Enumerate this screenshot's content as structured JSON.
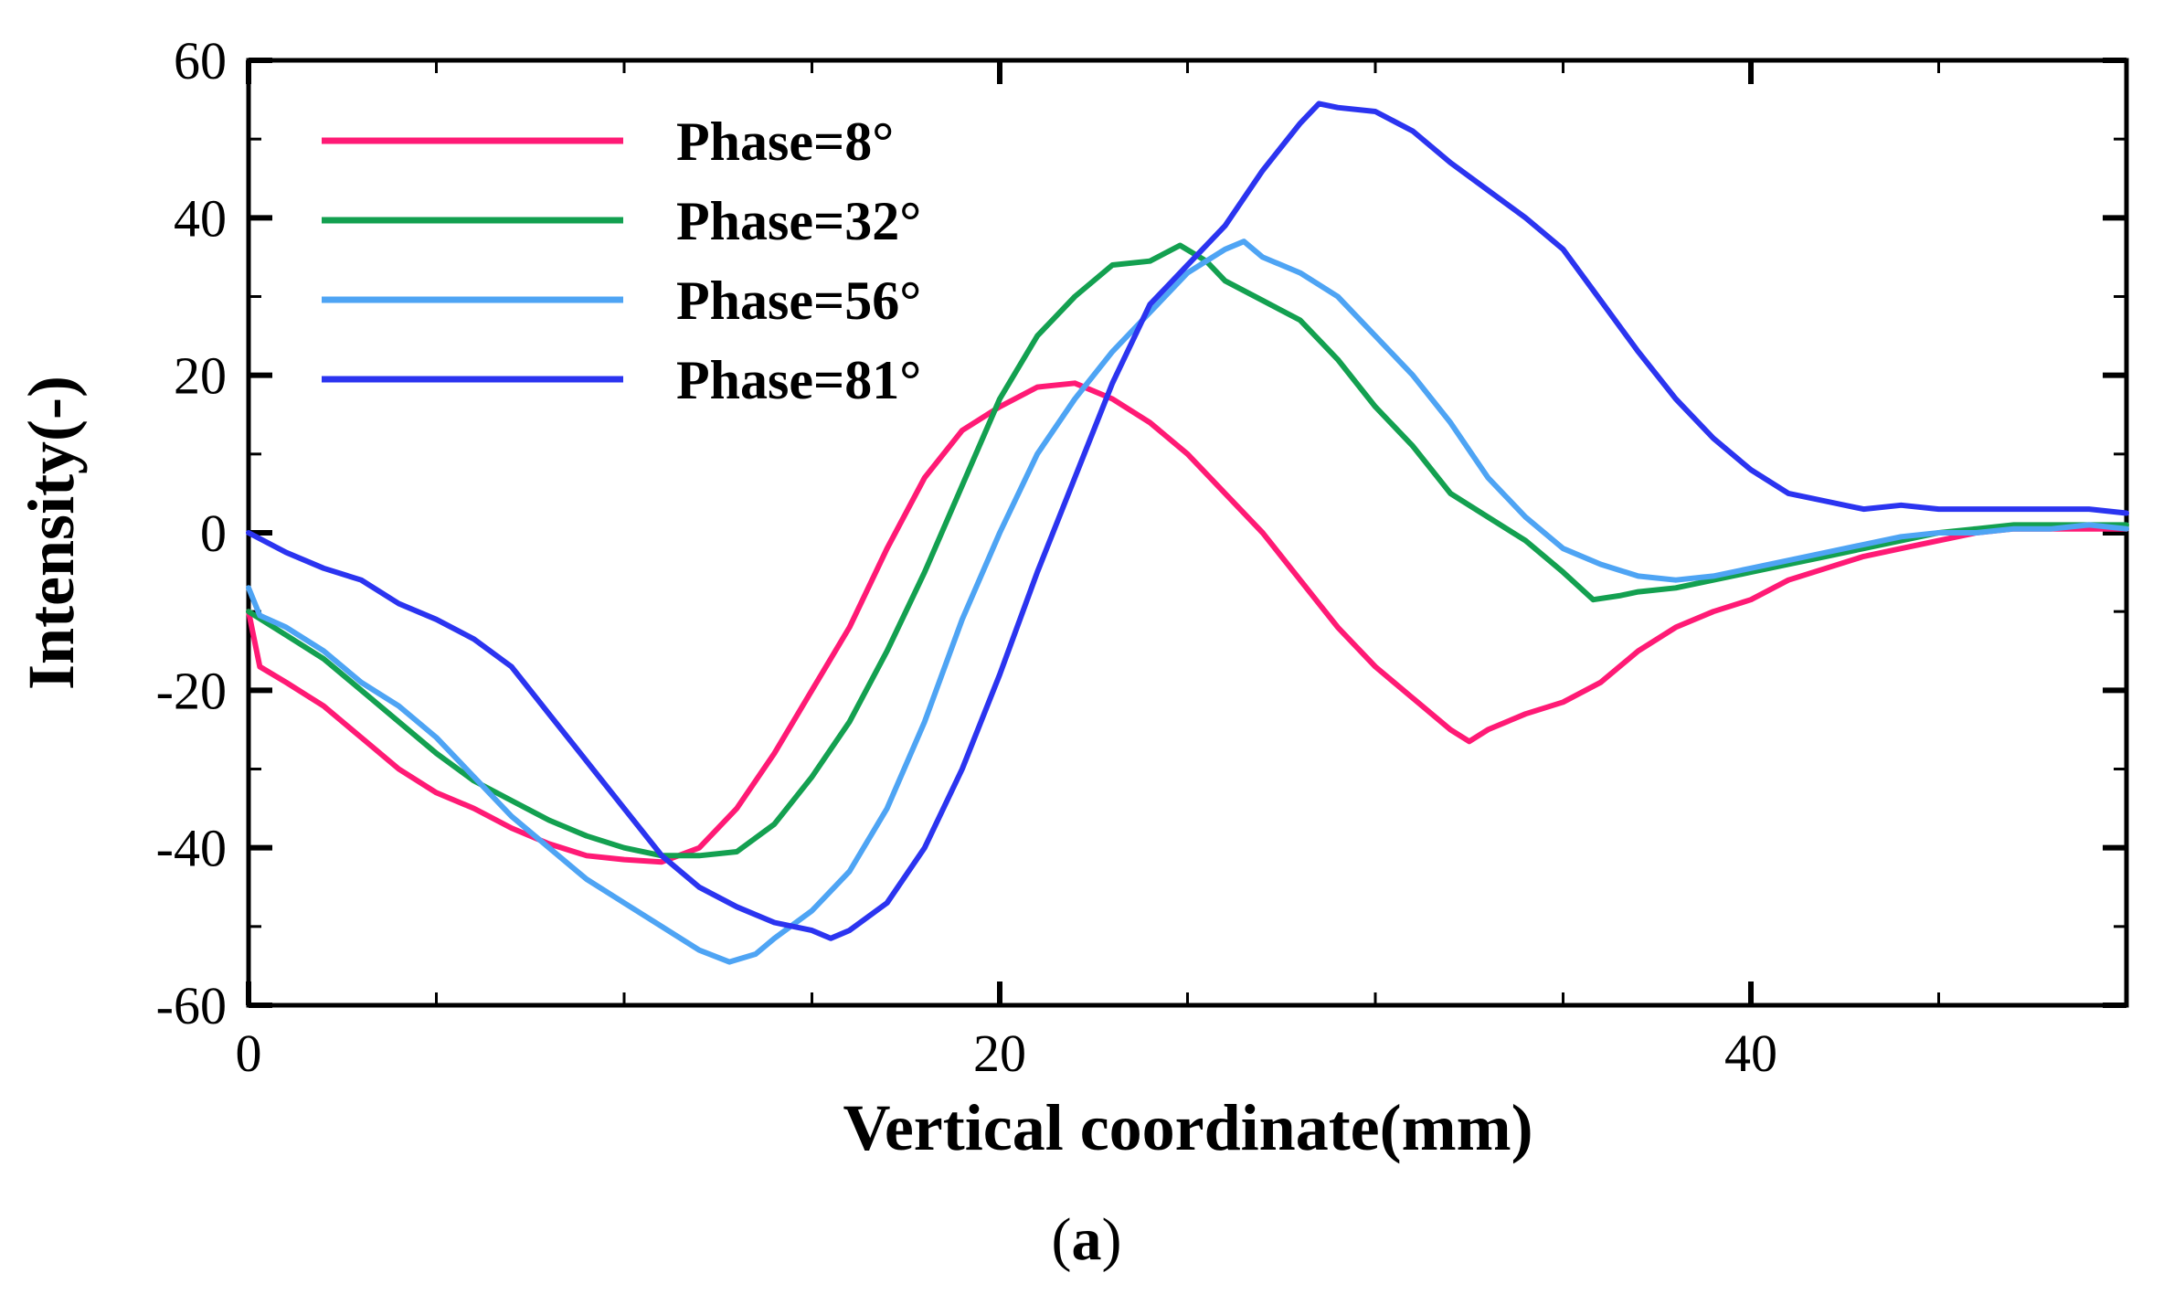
{
  "chart_data": {
    "type": "line",
    "title": "",
    "xlabel": "Vertical coordinate(mm)",
    "ylabel": "Intensity(-)",
    "xlim": [
      0,
      50
    ],
    "ylim": [
      -60,
      60
    ],
    "x_ticks": [
      0,
      20,
      40
    ],
    "x_tick_labels": [
      "0",
      "20",
      "40"
    ],
    "x_minor_step": 5,
    "y_ticks": [
      -60,
      -40,
      -20,
      0,
      20,
      40,
      60
    ],
    "y_tick_labels": [
      "-60",
      "-40",
      "-20",
      "0",
      "20",
      "40",
      "60"
    ],
    "y_minor_step": 10,
    "grid": false,
    "legend_position": "top-left",
    "series": [
      {
        "name": "Phase=8°",
        "color": "#ff1a75",
        "points": [
          [
            0,
            -10
          ],
          [
            0.3,
            -17
          ],
          [
            1,
            -19
          ],
          [
            2,
            -22
          ],
          [
            3,
            -26
          ],
          [
            4,
            -30
          ],
          [
            5,
            -33
          ],
          [
            6,
            -35
          ],
          [
            7,
            -37.5
          ],
          [
            8,
            -39.5
          ],
          [
            9,
            -41
          ],
          [
            10,
            -41.5
          ],
          [
            11,
            -41.8
          ],
          [
            12,
            -40
          ],
          [
            13,
            -35
          ],
          [
            14,
            -28
          ],
          [
            15,
            -20
          ],
          [
            16,
            -12
          ],
          [
            17,
            -2
          ],
          [
            18,
            7
          ],
          [
            19,
            13
          ],
          [
            20,
            16
          ],
          [
            21,
            18.5
          ],
          [
            22,
            19
          ],
          [
            23,
            17
          ],
          [
            24,
            14
          ],
          [
            25,
            10
          ],
          [
            26,
            5
          ],
          [
            27,
            0
          ],
          [
            28,
            -6
          ],
          [
            29,
            -12
          ],
          [
            30,
            -17
          ],
          [
            31,
            -21
          ],
          [
            32,
            -25
          ],
          [
            32.5,
            -26.5
          ],
          [
            33,
            -25
          ],
          [
            34,
            -23
          ],
          [
            35,
            -21.5
          ],
          [
            36,
            -19
          ],
          [
            37,
            -15
          ],
          [
            38,
            -12
          ],
          [
            39,
            -10
          ],
          [
            40,
            -8.5
          ],
          [
            41,
            -6
          ],
          [
            42,
            -4.5
          ],
          [
            43,
            -3
          ],
          [
            44,
            -2
          ],
          [
            45,
            -1
          ],
          [
            46,
            0
          ],
          [
            47,
            0.5
          ],
          [
            48,
            0.5
          ],
          [
            49,
            0.5
          ],
          [
            50,
            0.5
          ]
        ]
      },
      {
        "name": "Phase=32°",
        "color": "#13a050",
        "points": [
          [
            0,
            -10
          ],
          [
            1,
            -13
          ],
          [
            2,
            -16
          ],
          [
            3,
            -20
          ],
          [
            4,
            -24
          ],
          [
            5,
            -28
          ],
          [
            6,
            -31.5
          ],
          [
            7,
            -34
          ],
          [
            8,
            -36.5
          ],
          [
            9,
            -38.5
          ],
          [
            10,
            -40
          ],
          [
            11,
            -41
          ],
          [
            12,
            -41
          ],
          [
            13,
            -40.5
          ],
          [
            14,
            -37
          ],
          [
            15,
            -31
          ],
          [
            16,
            -24
          ],
          [
            17,
            -15
          ],
          [
            18,
            -5
          ],
          [
            19,
            6
          ],
          [
            20,
            17
          ],
          [
            21,
            25
          ],
          [
            22,
            30
          ],
          [
            23,
            34
          ],
          [
            24,
            34.5
          ],
          [
            24.8,
            36.5
          ],
          [
            25.5,
            34.5
          ],
          [
            26,
            32
          ],
          [
            27,
            29.5
          ],
          [
            28,
            27
          ],
          [
            29,
            22
          ],
          [
            30,
            16
          ],
          [
            31,
            11
          ],
          [
            32,
            5
          ],
          [
            33,
            2
          ],
          [
            34,
            -1
          ],
          [
            35,
            -5
          ],
          [
            35.8,
            -8.5
          ],
          [
            36.5,
            -8
          ],
          [
            37,
            -7.5
          ],
          [
            38,
            -7
          ],
          [
            39,
            -6
          ],
          [
            40,
            -5
          ],
          [
            41,
            -4
          ],
          [
            42,
            -3
          ],
          [
            43,
            -2
          ],
          [
            44,
            -1
          ],
          [
            45,
            0
          ],
          [
            46,
            0.5
          ],
          [
            47,
            1
          ],
          [
            48,
            1
          ],
          [
            49,
            1
          ],
          [
            50,
            1
          ]
        ]
      },
      {
        "name": "Phase=56°",
        "color": "#4ea4f4",
        "points": [
          [
            0,
            -7
          ],
          [
            0.3,
            -10.5
          ],
          [
            1,
            -12
          ],
          [
            2,
            -15
          ],
          [
            3,
            -19
          ],
          [
            4,
            -22
          ],
          [
            5,
            -26
          ],
          [
            6,
            -31
          ],
          [
            7,
            -36
          ],
          [
            8,
            -40
          ],
          [
            9,
            -44
          ],
          [
            10,
            -47
          ],
          [
            11,
            -50
          ],
          [
            12,
            -53
          ],
          [
            12.8,
            -54.5
          ],
          [
            13.5,
            -53.5
          ],
          [
            14,
            -51.5
          ],
          [
            15,
            -48
          ],
          [
            16,
            -43
          ],
          [
            17,
            -35
          ],
          [
            18,
            -24
          ],
          [
            19,
            -11
          ],
          [
            20,
            0
          ],
          [
            21,
            10
          ],
          [
            22,
            17
          ],
          [
            23,
            23
          ],
          [
            24,
            28
          ],
          [
            25,
            33
          ],
          [
            26,
            36
          ],
          [
            26.5,
            37
          ],
          [
            27,
            35
          ],
          [
            28,
            33
          ],
          [
            29,
            30
          ],
          [
            30,
            25
          ],
          [
            31,
            20
          ],
          [
            32,
            14
          ],
          [
            33,
            7
          ],
          [
            34,
            2
          ],
          [
            35,
            -2
          ],
          [
            36,
            -4
          ],
          [
            37,
            -5.5
          ],
          [
            38,
            -6
          ],
          [
            39,
            -5.5
          ],
          [
            40,
            -4.5
          ],
          [
            41,
            -3.5
          ],
          [
            42,
            -2.5
          ],
          [
            43,
            -1.5
          ],
          [
            44,
            -0.5
          ],
          [
            45,
            0
          ],
          [
            46,
            0
          ],
          [
            47,
            0.5
          ],
          [
            48,
            0.5
          ],
          [
            49,
            1
          ],
          [
            50,
            0.5
          ]
        ]
      },
      {
        "name": "Phase=81°",
        "color": "#2b34f0",
        "points": [
          [
            0,
            0
          ],
          [
            1,
            -2.5
          ],
          [
            2,
            -4.5
          ],
          [
            3,
            -6
          ],
          [
            4,
            -9
          ],
          [
            5,
            -11
          ],
          [
            6,
            -13.5
          ],
          [
            7,
            -17
          ],
          [
            8,
            -23
          ],
          [
            9,
            -29
          ],
          [
            10,
            -35
          ],
          [
            11,
            -41
          ],
          [
            12,
            -45
          ],
          [
            13,
            -47.5
          ],
          [
            14,
            -49.5
          ],
          [
            15,
            -50.5
          ],
          [
            15.5,
            -51.5
          ],
          [
            16,
            -50.5
          ],
          [
            17,
            -47
          ],
          [
            18,
            -40
          ],
          [
            19,
            -30
          ],
          [
            20,
            -18
          ],
          [
            21,
            -5
          ],
          [
            22,
            7
          ],
          [
            23,
            19
          ],
          [
            24,
            29
          ],
          [
            25,
            34
          ],
          [
            26,
            39
          ],
          [
            27,
            46
          ],
          [
            28,
            52
          ],
          [
            28.5,
            54.5
          ],
          [
            29,
            54
          ],
          [
            30,
            53.5
          ],
          [
            31,
            51
          ],
          [
            32,
            47
          ],
          [
            33,
            43.5
          ],
          [
            34,
            40
          ],
          [
            35,
            36
          ],
          [
            36,
            29.5
          ],
          [
            37,
            23
          ],
          [
            38,
            17
          ],
          [
            39,
            12
          ],
          [
            40,
            8
          ],
          [
            41,
            5
          ],
          [
            42,
            4
          ],
          [
            43,
            3
          ],
          [
            44,
            3.5
          ],
          [
            45,
            3
          ],
          [
            46,
            3
          ],
          [
            47,
            3
          ],
          [
            48,
            3
          ],
          [
            49,
            3
          ],
          [
            50,
            2.5
          ]
        ]
      }
    ]
  },
  "caption": {
    "open": "(",
    "letter": "a",
    "close": ")"
  }
}
